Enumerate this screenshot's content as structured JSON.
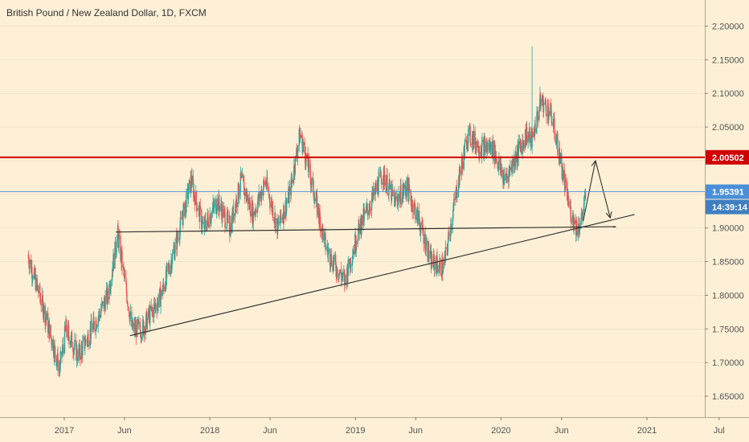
{
  "title": "British Pound / New Zealand Dollar, 1D, FXCM",
  "chart_data": {
    "type": "candlestick",
    "symbol": "GBPNZD",
    "timeframe": "1D",
    "y_ticks": [
      "2.20000",
      "2.15000",
      "2.10000",
      "2.05000",
      "2.00000",
      "1.95000",
      "1.90000",
      "1.85000",
      "1.80000",
      "1.75000",
      "1.70000",
      "1.65000"
    ],
    "y_values": [
      2.2,
      2.15,
      2.1,
      2.05,
      2.0,
      1.95,
      1.9,
      1.85,
      1.8,
      1.75,
      1.7,
      1.65
    ],
    "ylim": [
      1.62,
      2.23
    ],
    "x_ticks": [
      "2017",
      "Jun",
      "2018",
      "Jun",
      "2019",
      "Jun",
      "2020",
      "Jun",
      "2021",
      "Jul"
    ],
    "x_tick_dates": [
      "2017-01-01",
      "2017-06-01",
      "2018-01-01",
      "2018-06-01",
      "2019-01-01",
      "2019-06-01",
      "2020-01-01",
      "2020-06-01",
      "2021-01-01",
      "2021-07-01"
    ],
    "price_path": [
      [
        "2016-10-01",
        1.86
      ],
      [
        "2016-11-10",
        1.78
      ],
      [
        "2016-12-20",
        1.69
      ],
      [
        "2017-01-05",
        1.75
      ],
      [
        "2017-02-05",
        1.71
      ],
      [
        "2017-03-20",
        1.76
      ],
      [
        "2017-04-20",
        1.8
      ],
      [
        "2017-05-15",
        1.89
      ],
      [
        "2017-06-20",
        1.75
      ],
      [
        "2017-07-15",
        1.75
      ],
      [
        "2017-09-01",
        1.8
      ],
      [
        "2017-10-10",
        1.88
      ],
      [
        "2017-11-15",
        1.97
      ],
      [
        "2017-12-15",
        1.9
      ],
      [
        "2018-01-20",
        1.94
      ],
      [
        "2018-02-20",
        1.9
      ],
      [
        "2018-03-20",
        1.97
      ],
      [
        "2018-04-20",
        1.92
      ],
      [
        "2018-05-20",
        1.97
      ],
      [
        "2018-06-20",
        1.9
      ],
      [
        "2018-07-20",
        1.95
      ],
      [
        "2018-08-15",
        2.04
      ],
      [
        "2018-09-05",
        1.99
      ],
      [
        "2018-10-01",
        1.92
      ],
      [
        "2018-10-20",
        1.87
      ],
      [
        "2018-11-05",
        1.85
      ],
      [
        "2018-12-05",
        1.82
      ],
      [
        "2019-01-10",
        1.9
      ],
      [
        "2019-02-10",
        1.94
      ],
      [
        "2019-03-10",
        1.98
      ],
      [
        "2019-04-10",
        1.94
      ],
      [
        "2019-05-10",
        1.96
      ],
      [
        "2019-06-10",
        1.91
      ],
      [
        "2019-07-10",
        1.85
      ],
      [
        "2019-08-10",
        1.84
      ],
      [
        "2019-09-10",
        1.95
      ],
      [
        "2019-10-10",
        2.04
      ],
      [
        "2019-11-10",
        2.02
      ],
      [
        "2019-12-10",
        2.02
      ],
      [
        "2020-01-10",
        1.97
      ],
      [
        "2020-02-10",
        2.01
      ],
      [
        "2020-03-05",
        2.04
      ],
      [
        "2020-03-19",
        2.03
      ],
      [
        "2020-04-10",
        2.09
      ],
      [
        "2020-05-05",
        2.07
      ],
      [
        "2020-05-20",
        2.03
      ],
      [
        "2020-06-10",
        1.96
      ],
      [
        "2020-06-25",
        1.92
      ],
      [
        "2020-07-10",
        1.9
      ],
      [
        "2020-07-20",
        1.91
      ],
      [
        "2020-08-01",
        1.95
      ]
    ],
    "spike": {
      "date": "2020-03-19",
      "high": 2.17
    },
    "horizontal_level": {
      "value": 2.00502,
      "label": "2.00502",
      "color": "#d00000"
    },
    "current_price": {
      "value": 1.95391,
      "label": "1.95391",
      "color": "#4a90d9"
    },
    "countdown": {
      "label": "14:39:14"
    },
    "trendlines": [
      {
        "name": "horizontal-support",
        "from": [
          "2017-05-10",
          1.894
        ],
        "to": [
          "2020-10-15",
          1.902
        ],
        "color": "#333333"
      },
      {
        "name": "rising-support",
        "from": [
          "2017-06-15",
          1.74
        ],
        "to": [
          "2020-12-01",
          1.92
        ],
        "color": "#333333"
      }
    ],
    "projection_arrow": {
      "points": [
        [
          "2020-07-25",
          1.91
        ],
        [
          "2020-08-25",
          2.0
        ],
        [
          "2020-10-01",
          1.915
        ]
      ],
      "color": "#333333"
    },
    "colors": {
      "bull": "#26a69a",
      "bear": "#ef5350",
      "background": "#fdf0d6",
      "grid": "#e8dcc4"
    }
  }
}
